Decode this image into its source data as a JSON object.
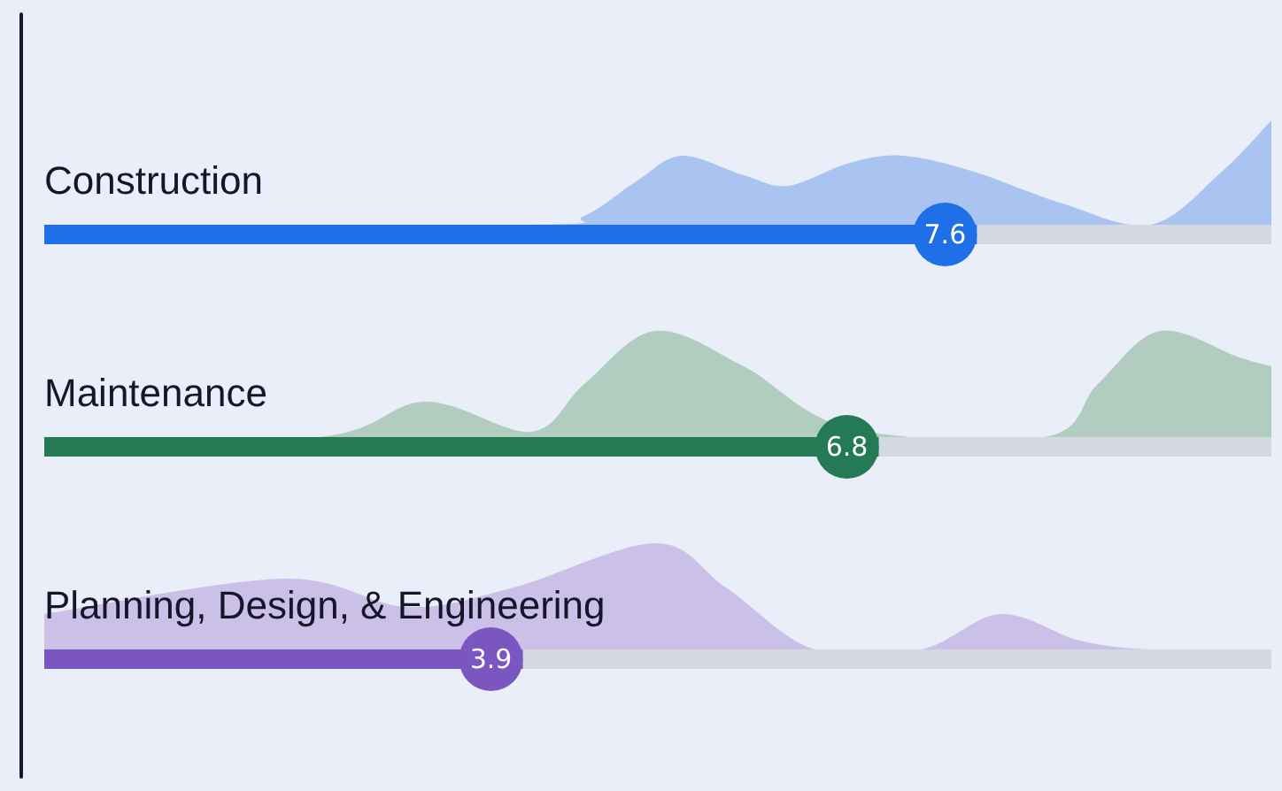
{
  "chart_data": {
    "type": "bar",
    "orientation": "horizontal",
    "categories": [
      "Construction",
      "Maintenance",
      "Planning, Design, & Engineering"
    ],
    "xlim": [
      0,
      10
    ],
    "data_labels": true,
    "values": [
      7.6,
      6.8,
      3.9
    ],
    "colors": [
      "#1f6fe8",
      "#237a55",
      "#7b55c0"
    ]
  }
}
